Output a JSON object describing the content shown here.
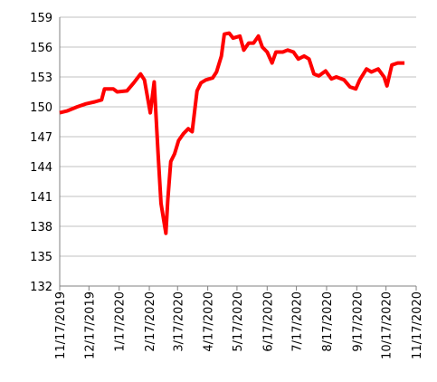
{
  "chart_data": {
    "type": "line",
    "x": [
      "11/17/2019",
      "11/25/2019",
      "12/5/2019",
      "12/14/2019",
      "12/23/2019",
      "12/30/2019",
      "1/2/2020",
      "1/11/2020",
      "1/15/2020",
      "1/25/2020",
      "2/1/2020",
      "2/8/2020",
      "2/12/2020",
      "2/18/2020",
      "2/22/2020",
      "2/26/2020",
      "2/29/2020",
      "3/3/2020",
      "3/5/2020",
      "3/7/2020",
      "3/10/2020",
      "3/14/2020",
      "3/18/2020",
      "3/23/2020",
      "3/28/2020",
      "4/1/2020",
      "4/6/2020",
      "4/10/2020",
      "4/15/2020",
      "4/22/2020",
      "4/26/2020",
      "5/1/2020",
      "5/4/2020",
      "5/9/2020",
      "5/13/2020",
      "5/20/2020",
      "5/24/2020",
      "5/29/2020",
      "6/3/2020",
      "6/8/2020",
      "6/12/2020",
      "6/17/2020",
      "6/22/2020",
      "6/26/2020",
      "7/3/2020",
      "7/8/2020",
      "7/14/2020",
      "7/19/2020",
      "7/25/2020",
      "7/30/2020",
      "8/4/2020",
      "8/9/2020",
      "8/16/2020",
      "8/22/2020",
      "8/27/2020",
      "9/4/2020",
      "9/10/2020",
      "9/16/2020",
      "9/20/2020",
      "9/27/2020",
      "10/2/2020",
      "10/9/2020",
      "10/15/2020",
      "10/18/2020",
      "10/23/2020",
      "10/29/2020",
      "11/5/2020"
    ],
    "series": [
      {
        "color": "#ff0000",
        "values": [
          149.4,
          149.6,
          150.0,
          150.3,
          150.5,
          150.7,
          151.8,
          151.8,
          151.5,
          151.6,
          152.4,
          153.3,
          152.7,
          149.4,
          152.5,
          145.3,
          140.3,
          138.5,
          137.3,
          140.7,
          144.5,
          145.3,
          146.6,
          147.3,
          147.8,
          147.5,
          151.6,
          152.4,
          152.7,
          152.9,
          153.5,
          155.1,
          157.3,
          157.4,
          156.9,
          157.1,
          155.7,
          156.4,
          156.4,
          157.1,
          156.0,
          155.5,
          154.4,
          155.5,
          155.5,
          155.7,
          155.5,
          154.8,
          155.1,
          154.8,
          153.3,
          153.1,
          153.6,
          152.8,
          153.0,
          152.7,
          152.0,
          151.8,
          152.7,
          153.8,
          153.5,
          153.8,
          153.0,
          152.1,
          154.2,
          154.4,
          154.4
        ]
      }
    ],
    "xlim": [
      "11/17/2019",
      "11/17/2020"
    ],
    "xticks": [
      "11/17/2019",
      "12/17/2019",
      "1/17/2020",
      "2/17/2020",
      "3/17/2020",
      "4/17/2020",
      "5/17/2020",
      "6/17/2020",
      "7/17/2020",
      "8/17/2020",
      "9/17/2020",
      "10/17/2020",
      "11/17/2020"
    ],
    "ylim": [
      132,
      159
    ],
    "yticks": [
      132,
      135,
      138,
      141,
      144,
      147,
      150,
      153,
      156,
      159
    ],
    "grid": true
  }
}
